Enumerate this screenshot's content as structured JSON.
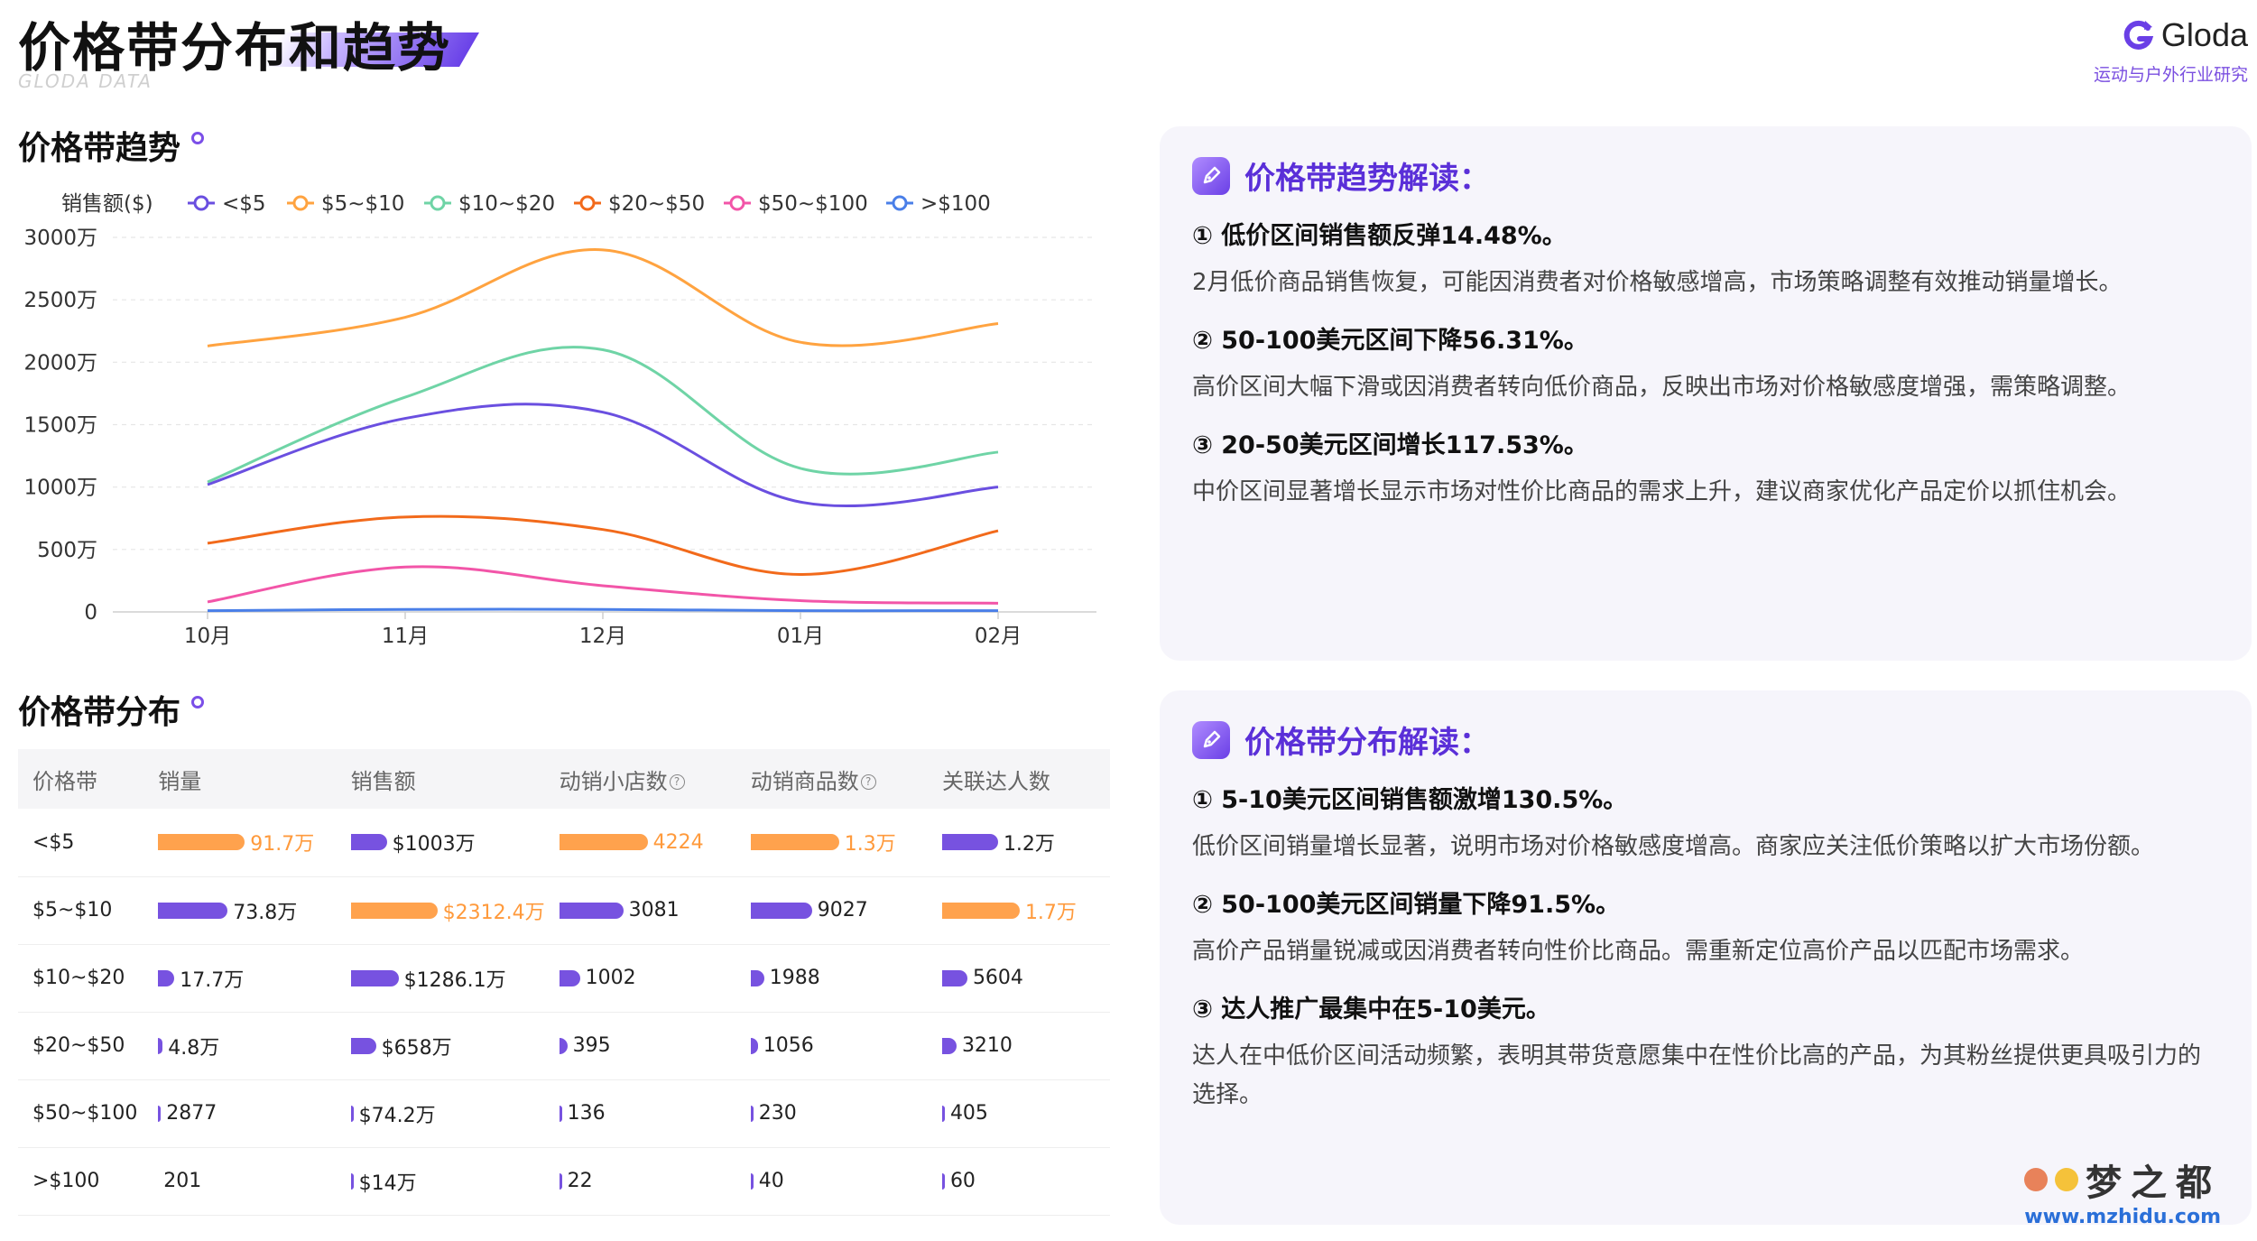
{
  "header": {
    "title": "价格带分布和趋势",
    "subtitle": "GLODA DATA",
    "logo": "Gloda",
    "logo_sub": "运动与户外行业研究"
  },
  "trend": {
    "section_title": "价格带趋势"
  },
  "distribution": {
    "section_title": "价格带分布"
  },
  "chart_data": {
    "type": "line",
    "title": "",
    "ylabel": "销售额($)",
    "categories": [
      "10月",
      "11月",
      "12月",
      "01月",
      "02月"
    ],
    "yticks": [
      "0",
      "500万",
      "1000万",
      "1500万",
      "2000万",
      "2500万",
      "3000万"
    ],
    "ylim": [
      0,
      3000
    ],
    "legend_position": "top",
    "grid": true,
    "series": [
      {
        "name": "<$5",
        "color": "#6a4fe0",
        "values": [
          1020,
          1550,
          1600,
          880,
          1000
        ]
      },
      {
        "name": "$5~$10",
        "color": "#ffa340",
        "values": [
          2130,
          2360,
          2900,
          2160,
          2310
        ]
      },
      {
        "name": "$10~$20",
        "color": "#6fd4a6",
        "values": [
          1040,
          1720,
          2100,
          1150,
          1280
        ]
      },
      {
        "name": "$20~$50",
        "color": "#f26a1b",
        "values": [
          550,
          760,
          660,
          300,
          650
        ]
      },
      {
        "name": "$50~$100",
        "color": "#f255a8",
        "values": [
          80,
          360,
          210,
          90,
          70
        ]
      },
      {
        "name": ">$100",
        "color": "#4a7fe8",
        "values": [
          10,
          20,
          20,
          10,
          10
        ]
      }
    ]
  },
  "cards": [
    {
      "title": "价格带趋势解读：",
      "points": [
        {
          "head": "① 低价区间销售额反弹14.48%。",
          "desc": "2月低价商品销售恢复，可能因消费者对价格敏感增高，市场策略调整有效推动销量增长。"
        },
        {
          "head": "② 50-100美元区间下降56.31%。",
          "desc": "高价区间大幅下滑或因消费者转向低价商品，反映出市场对价格敏感度增强，需策略调整。"
        },
        {
          "head": "③ 20-50美元区间增长117.53%。",
          "desc": "中价区间显著增长显示市场对性价比商品的需求上升，建议商家优化产品定价以抓住机会。"
        }
      ]
    },
    {
      "title": "价格带分布解读：",
      "points": [
        {
          "head": "① 5-10美元区间销售额激增130.5%。",
          "desc": "低价区间销量增长显著，说明市场对价格敏感度增高。商家应关注低价策略以扩大市场份额。"
        },
        {
          "head": "② 50-100美元区间销量下降91.5%。",
          "desc": "高价产品销量锐减或因消费者转向性价比商品。需重新定位高价产品以匹配市场需求。"
        },
        {
          "head": "③ 达人推广最集中在5-10美元。",
          "desc": "达人在中低价区间活动频繁，表明其带货意愿集中在性价比高的产品，为其粉丝提供更具吸引力的选择。"
        }
      ]
    }
  ],
  "table": {
    "headers": [
      "价格带",
      "销量",
      "销售额",
      "动销小店数",
      "动销商品数",
      "关联达人数"
    ],
    "info_icon": "?",
    "rows": [
      {
        "band": "<$5",
        "cells": [
          {
            "v": "91.7万",
            "r": 0.96,
            "hi": true
          },
          {
            "v": "$1003万",
            "r": 0.4,
            "hi": false
          },
          {
            "v": "4224",
            "r": 0.98,
            "hi": true
          },
          {
            "v": "1.3万",
            "r": 0.98,
            "hi": true
          },
          {
            "v": "1.2万",
            "r": 0.62,
            "hi": false
          }
        ]
      },
      {
        "band": "$5~$10",
        "cells": [
          {
            "v": "73.8万",
            "r": 0.77,
            "hi": false
          },
          {
            "v": "$2312.4万",
            "r": 0.96,
            "hi": true
          },
          {
            "v": "3081",
            "r": 0.71,
            "hi": false
          },
          {
            "v": "9027",
            "r": 0.68,
            "hi": false
          },
          {
            "v": "1.7万",
            "r": 0.86,
            "hi": true
          }
        ]
      },
      {
        "band": "$10~$20",
        "cells": [
          {
            "v": "17.7万",
            "r": 0.18,
            "hi": false
          },
          {
            "v": "$1286.1万",
            "r": 0.53,
            "hi": false
          },
          {
            "v": "1002",
            "r": 0.23,
            "hi": false
          },
          {
            "v": "1988",
            "r": 0.15,
            "hi": false
          },
          {
            "v": "5604",
            "r": 0.28,
            "hi": false
          }
        ]
      },
      {
        "band": "$20~$50",
        "cells": [
          {
            "v": "4.8万",
            "r": 0.05,
            "hi": false
          },
          {
            "v": "$658万",
            "r": 0.28,
            "hi": false
          },
          {
            "v": "395",
            "r": 0.09,
            "hi": false
          },
          {
            "v": "1056",
            "r": 0.08,
            "hi": false
          },
          {
            "v": "3210",
            "r": 0.16,
            "hi": false
          }
        ]
      },
      {
        "band": "$50~$100",
        "cells": [
          {
            "v": "2877",
            "r": 0.01,
            "hi": false
          },
          {
            "v": "$74.2万",
            "r": 0.02,
            "hi": false
          },
          {
            "v": "136",
            "r": 0.02,
            "hi": false
          },
          {
            "v": "230",
            "r": 0.01,
            "hi": false
          },
          {
            "v": "405",
            "r": 0.01,
            "hi": false
          }
        ]
      },
      {
        "band": ">$100",
        "cells": [
          {
            "v": "201",
            "r": 0.0,
            "hi": false
          },
          {
            "v": "$14万",
            "r": 0.01,
            "hi": false
          },
          {
            "v": "22",
            "r": 0.01,
            "hi": false
          },
          {
            "v": "40",
            "r": 0.01,
            "hi": false
          },
          {
            "v": "60",
            "r": 0.01,
            "hi": false
          }
        ]
      }
    ]
  },
  "watermark": {
    "main": "梦之都",
    "sub": "www.mzhidu.com"
  }
}
